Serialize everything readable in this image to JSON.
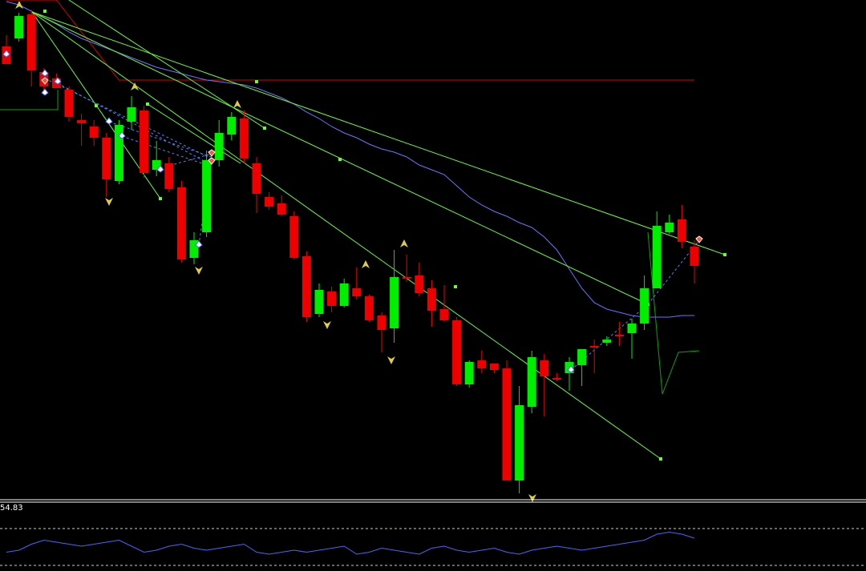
{
  "chart_data": {
    "type": "candlestick",
    "title": "",
    "xlabel": "",
    "ylabel": "",
    "ylim": [
      0,
      624
    ],
    "grid": false,
    "candles": [
      [
        58,
        80,
        44,
        80
      ],
      [
        48,
        20,
        16,
        52
      ],
      [
        18,
        88,
        12,
        108
      ],
      [
        90,
        108,
        85,
        114
      ],
      [
        98,
        110,
        92,
        104
      ],
      [
        112,
        146,
        108,
        152
      ],
      [
        150,
        154,
        142,
        182
      ],
      [
        158,
        172,
        150,
        182
      ],
      [
        172,
        224,
        166,
        246
      ],
      [
        226,
        156,
        150,
        230
      ],
      [
        152,
        134,
        120,
        162
      ],
      [
        138,
        216,
        132,
        222
      ],
      [
        212,
        200,
        176,
        220
      ],
      [
        204,
        236,
        196,
        240
      ],
      [
        234,
        324,
        226,
        328
      ],
      [
        322,
        300,
        290,
        330
      ],
      [
        290,
        200,
        188,
        296
      ],
      [
        200,
        166,
        150,
        208
      ],
      [
        168,
        146,
        140,
        175
      ],
      [
        148,
        198,
        138,
        204
      ],
      [
        204,
        242,
        196,
        266
      ],
      [
        246,
        258,
        240,
        262
      ],
      [
        254,
        268,
        244,
        270
      ],
      [
        270,
        322,
        264,
        324
      ],
      [
        320,
        396,
        314,
        402
      ],
      [
        392,
        362,
        354,
        396
      ],
      [
        364,
        382,
        358,
        390
      ],
      [
        382,
        354,
        348,
        384
      ],
      [
        360,
        370,
        334,
        374
      ],
      [
        370,
        400,
        368,
        402
      ],
      [
        394,
        412,
        390,
        440
      ],
      [
        410,
        346,
        312,
        428
      ],
      [
        346,
        348,
        318,
        352
      ],
      [
        344,
        366,
        328,
        370
      ],
      [
        360,
        388,
        350,
        408
      ],
      [
        386,
        400,
        356,
        402
      ],
      [
        400,
        480,
        396,
        482
      ],
      [
        480,
        452,
        450,
        484
      ],
      [
        450,
        460,
        438,
        466
      ],
      [
        454,
        462,
        454,
        466
      ],
      [
        460,
        600,
        450,
        600
      ],
      [
        600,
        506,
        482,
        616
      ],
      [
        508,
        446,
        438,
        516
      ],
      [
        450,
        470,
        442,
        520
      ],
      [
        472,
        474,
        466,
        476
      ],
      [
        466,
        452,
        446,
        488
      ],
      [
        456,
        436,
        436,
        482
      ],
      [
        432,
        432,
        424,
        466
      ],
      [
        428,
        424,
        420,
        432
      ],
      [
        418,
        420,
        402,
        432
      ],
      [
        416,
        404,
        398,
        448
      ],
      [
        404,
        360,
        344,
        412
      ],
      [
        360,
        282,
        264,
        360
      ],
      [
        290,
        278,
        268,
        292
      ],
      [
        274,
        302,
        256,
        310
      ],
      [
        308,
        332,
        300,
        354
      ]
    ],
    "tenkan": [
      2,
      6,
      14,
      22,
      30,
      40,
      48,
      54,
      60,
      66,
      72,
      78,
      84,
      88,
      92,
      96,
      100,
      102,
      104,
      106,
      110,
      116,
      122,
      130,
      140,
      148,
      158,
      166,
      172,
      180,
      186,
      190,
      196,
      206,
      212,
      218,
      232,
      246,
      256,
      264,
      270,
      278,
      284,
      296,
      312,
      336,
      360,
      378,
      386,
      390,
      394,
      396,
      396,
      396,
      394,
      394
    ],
    "kijun": [
      0,
      0,
      0,
      0,
      0,
      20,
      40,
      60,
      80,
      100,
      100,
      100,
      100,
      100,
      100,
      100,
      100,
      100,
      100,
      100,
      100,
      100,
      100,
      100,
      100,
      100,
      100,
      100,
      100,
      100,
      100,
      100,
      100,
      100,
      100,
      100,
      100,
      100,
      100,
      100,
      100,
      100,
      100,
      100,
      100,
      100,
      100,
      100,
      100,
      100,
      100,
      100,
      100,
      100,
      100,
      100
    ],
    "oscillator": {
      "label": "54.83",
      "values": [
        58,
        60,
        66,
        70,
        68,
        66,
        64,
        66,
        68,
        70,
        64,
        58,
        60,
        64,
        66,
        62,
        60,
        62,
        64,
        66,
        58,
        56,
        58,
        60,
        58,
        60,
        62,
        64,
        56,
        58,
        62,
        60,
        58,
        56,
        62,
        64,
        60,
        58,
        60,
        62,
        58,
        56,
        60,
        62,
        64,
        62,
        60,
        62,
        64,
        66,
        68,
        70,
        76,
        78,
        76,
        72
      ]
    },
    "colors": {
      "bull": "#00ee00",
      "bear": "#ee0000",
      "tenkan": "#7070ff",
      "kijun": "#dd0000",
      "chikou": "#00aa00",
      "trendline": "#66ff33",
      "fractal": "#ddcc44",
      "oscillator": "#4466ff",
      "separator": "#ffffff"
    }
  }
}
